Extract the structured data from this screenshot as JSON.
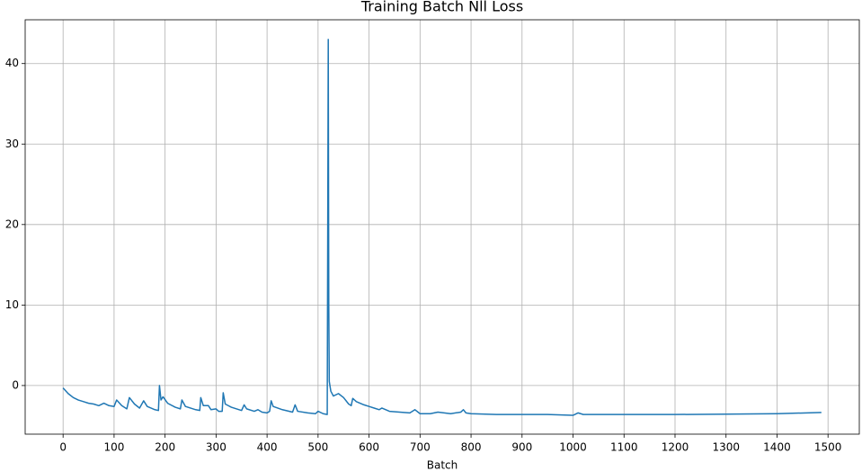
{
  "chart_data": {
    "type": "line",
    "title": "Training Batch Nll Loss",
    "x_label": "Batch",
    "color": "#1f77b4",
    "grid": true,
    "x": [
      0,
      10,
      20,
      30,
      40,
      50,
      60,
      70,
      80,
      90,
      100,
      105,
      115,
      125,
      130,
      140,
      150,
      158,
      165,
      180,
      187,
      189,
      192,
      196,
      205,
      220,
      230,
      233,
      240,
      260,
      268,
      270,
      275,
      285,
      290,
      300,
      305,
      312,
      314,
      318,
      330,
      350,
      355,
      360,
      375,
      382,
      390,
      400,
      405,
      408,
      412,
      430,
      450,
      455,
      460,
      480,
      495,
      500,
      510,
      518,
      520,
      521,
      522,
      525,
      530,
      540,
      550,
      560,
      565,
      568,
      575,
      590,
      600,
      610,
      620,
      625,
      640,
      660,
      680,
      690,
      700,
      720,
      735,
      760,
      780,
      785,
      790,
      800,
      850,
      900,
      950,
      1000,
      1010,
      1020,
      1100,
      1200,
      1300,
      1400,
      1487
    ],
    "values": [
      -0.3,
      -1.0,
      -1.5,
      -1.8,
      -2.0,
      -2.2,
      -2.3,
      -2.5,
      -2.2,
      -2.5,
      -2.6,
      -1.8,
      -2.5,
      -2.9,
      -1.5,
      -2.3,
      -2.8,
      -1.9,
      -2.6,
      -3.0,
      -3.1,
      0.0,
      -1.8,
      -1.4,
      -2.2,
      -2.7,
      -2.9,
      -1.8,
      -2.6,
      -3.0,
      -3.1,
      -1.5,
      -2.5,
      -2.5,
      -3.0,
      -2.9,
      -3.2,
      -3.2,
      -0.9,
      -2.3,
      -2.7,
      -3.1,
      -2.4,
      -2.9,
      -3.2,
      -3.0,
      -3.3,
      -3.4,
      -3.2,
      -1.9,
      -2.6,
      -3.0,
      -3.3,
      -2.4,
      -3.2,
      -3.4,
      -3.5,
      -3.2,
      -3.5,
      -3.6,
      43.0,
      10,
      0.5,
      -0.7,
      -1.3,
      -1.0,
      -1.5,
      -2.3,
      -2.5,
      -1.6,
      -2.0,
      -2.4,
      -2.6,
      -2.8,
      -3.0,
      -2.8,
      -3.2,
      -3.3,
      -3.4,
      -3.0,
      -3.5,
      -3.5,
      -3.3,
      -3.5,
      -3.3,
      -3.0,
      -3.4,
      -3.5,
      -3.6,
      -3.6,
      -3.6,
      -3.7,
      -3.4,
      -3.6,
      -3.6,
      -3.6,
      -3.55,
      -3.5,
      -3.35
    ],
    "xlim": [
      -74.35,
      1561.35
    ],
    "ylim": [
      -6.04,
      45.44
    ],
    "xticks": [
      0,
      100,
      200,
      300,
      400,
      500,
      600,
      700,
      800,
      900,
      1000,
      1100,
      1200,
      1300,
      1400,
      1500
    ],
    "yticks": [
      0,
      10,
      20,
      30,
      40
    ]
  }
}
